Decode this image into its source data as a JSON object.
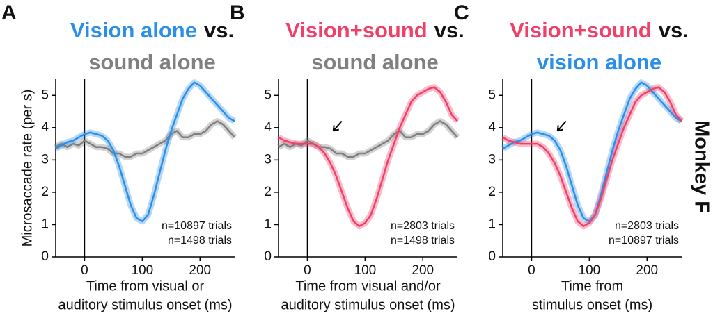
{
  "chart_data": [
    {
      "type": "line",
      "label": "A",
      "title": [
        [
          {
            "text": "Vision alone",
            "color": "#2b8fe8"
          },
          {
            "text": "vs.",
            "color": "#111111"
          }
        ],
        [
          {
            "text": "sound alone",
            "color": "#808080"
          }
        ]
      ],
      "y_label": "Microsaccade rate (per s)",
      "x_label": [
        "Time from visual or",
        "auditory stimulus onset (ms)"
      ],
      "xlim": [
        -50,
        260
      ],
      "ylim": [
        0,
        5.5
      ],
      "xticks": [
        0,
        100,
        200
      ],
      "yticks": [
        0,
        1,
        2,
        3,
        4,
        5
      ],
      "vline": 0,
      "legend": "lower right",
      "x": [
        -50,
        -40,
        -30,
        -20,
        -10,
        0,
        10,
        20,
        30,
        40,
        50,
        60,
        70,
        80,
        90,
        100,
        110,
        120,
        130,
        140,
        150,
        160,
        170,
        180,
        190,
        200,
        210,
        220,
        230,
        240,
        250,
        260
      ],
      "series": [
        {
          "name": "n=10897 trials",
          "color": "#2b8fe8",
          "values": [
            3.35,
            3.45,
            3.55,
            3.6,
            3.7,
            3.8,
            3.85,
            3.8,
            3.75,
            3.6,
            3.3,
            2.8,
            2.2,
            1.6,
            1.2,
            1.1,
            1.3,
            1.9,
            2.6,
            3.3,
            3.9,
            4.4,
            4.9,
            5.2,
            5.4,
            5.3,
            5.1,
            4.9,
            4.7,
            4.5,
            4.3,
            4.2
          ]
        },
        {
          "name": "n=1498 trials",
          "color": "#7f7f7f",
          "values": [
            3.4,
            3.5,
            3.4,
            3.5,
            3.45,
            3.6,
            3.5,
            3.4,
            3.4,
            3.35,
            3.2,
            3.2,
            3.1,
            3.1,
            3.2,
            3.2,
            3.3,
            3.4,
            3.5,
            3.6,
            3.8,
            3.9,
            3.7,
            3.7,
            3.8,
            3.8,
            3.9,
            4.1,
            4.2,
            4.1,
            3.9,
            3.7
          ]
        }
      ]
    },
    {
      "type": "line",
      "label": "B",
      "title": [
        [
          {
            "text": "Vision+sound",
            "color": "#f0406a"
          },
          {
            "text": "vs.",
            "color": "#111111"
          }
        ],
        [
          {
            "text": "sound alone",
            "color": "#808080"
          }
        ]
      ],
      "x_label": [
        "Time from visual and/or",
        "auditory stimulus onset (ms)"
      ],
      "xlim": [
        -50,
        260
      ],
      "ylim": [
        0,
        5.5
      ],
      "xticks": [
        0,
        100,
        200
      ],
      "yticks": [
        0,
        1,
        2,
        3,
        4,
        5
      ],
      "vline": 0,
      "legend": "lower right",
      "arrow": [
        45,
        3.9
      ],
      "x": [
        -50,
        -40,
        -30,
        -20,
        -10,
        0,
        10,
        20,
        30,
        40,
        50,
        60,
        70,
        80,
        90,
        100,
        110,
        120,
        130,
        140,
        150,
        160,
        170,
        180,
        190,
        200,
        210,
        220,
        230,
        240,
        250,
        260
      ],
      "series": [
        {
          "name": "n=2803 trials",
          "color": "#f0406a",
          "values": [
            3.7,
            3.6,
            3.55,
            3.5,
            3.5,
            3.5,
            3.5,
            3.4,
            3.2,
            2.9,
            2.5,
            2.0,
            1.5,
            1.1,
            0.95,
            1.05,
            1.3,
            1.8,
            2.4,
            3.0,
            3.5,
            4.0,
            4.4,
            4.8,
            5.0,
            5.1,
            5.2,
            5.25,
            5.1,
            4.8,
            4.4,
            4.2
          ]
        },
        {
          "name": "n=1498 trials",
          "color": "#7f7f7f",
          "values": [
            3.4,
            3.5,
            3.4,
            3.5,
            3.45,
            3.6,
            3.5,
            3.4,
            3.4,
            3.35,
            3.2,
            3.2,
            3.1,
            3.1,
            3.2,
            3.2,
            3.3,
            3.4,
            3.5,
            3.6,
            3.8,
            3.9,
            3.7,
            3.7,
            3.8,
            3.8,
            3.9,
            4.1,
            4.2,
            4.1,
            3.9,
            3.7
          ]
        }
      ]
    },
    {
      "type": "line",
      "label": "C",
      "title": [
        [
          {
            "text": "Vision+sound",
            "color": "#f0406a"
          },
          {
            "text": "vs.",
            "color": "#111111"
          }
        ],
        [
          {
            "text": "vision alone",
            "color": "#2b8fe8"
          }
        ]
      ],
      "x_label": [
        "Time from",
        "stimulus onset (ms)"
      ],
      "xlim": [
        -50,
        260
      ],
      "ylim": [
        0,
        5.5
      ],
      "xticks": [
        0,
        100,
        200
      ],
      "yticks": [
        0,
        1,
        2,
        3,
        4,
        5
      ],
      "vline": 0,
      "legend": "lower right",
      "arrow": [
        45,
        3.9
      ],
      "x": [
        -50,
        -40,
        -30,
        -20,
        -10,
        0,
        10,
        20,
        30,
        40,
        50,
        60,
        70,
        80,
        90,
        100,
        110,
        120,
        130,
        140,
        150,
        160,
        170,
        180,
        190,
        200,
        210,
        220,
        230,
        240,
        250,
        260
      ],
      "series": [
        {
          "name": "n=2803 trials",
          "color": "#f0406a",
          "values": [
            3.7,
            3.6,
            3.55,
            3.5,
            3.5,
            3.5,
            3.5,
            3.4,
            3.2,
            2.9,
            2.5,
            2.0,
            1.5,
            1.1,
            0.95,
            1.05,
            1.3,
            1.8,
            2.4,
            3.0,
            3.5,
            4.0,
            4.4,
            4.8,
            5.0,
            5.1,
            5.2,
            5.25,
            5.1,
            4.8,
            4.4,
            4.2
          ]
        },
        {
          "name": "n=10897 trials",
          "color": "#2b8fe8",
          "values": [
            3.35,
            3.45,
            3.55,
            3.6,
            3.7,
            3.8,
            3.85,
            3.8,
            3.75,
            3.6,
            3.3,
            2.8,
            2.2,
            1.6,
            1.2,
            1.1,
            1.3,
            1.9,
            2.6,
            3.3,
            3.9,
            4.4,
            4.9,
            5.2,
            5.4,
            5.3,
            5.1,
            4.9,
            4.7,
            4.5,
            4.3,
            4.2
          ]
        }
      ]
    }
  ],
  "side_label": "Monkey F"
}
